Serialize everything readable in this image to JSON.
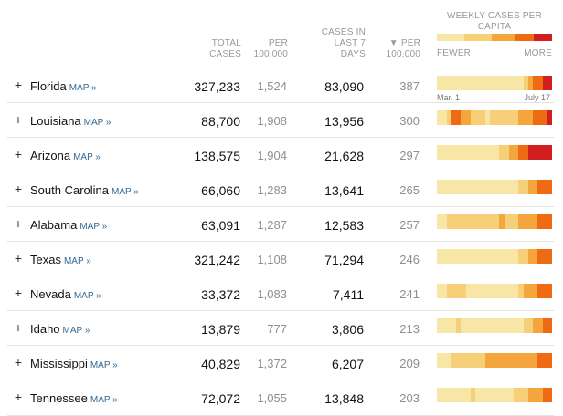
{
  "header": {
    "total_cases": "TOTAL CASES",
    "per_100k": "PER 100,000",
    "cases_last_7": "CASES IN LAST 7 DAYS",
    "per_100k_sorted": "▼ PER 100,000",
    "weekly_title": "WEEKLY CASES PER CAPITA",
    "fewer": "FEWER",
    "more": "MORE",
    "legend_colors": [
      "#f7e6a6",
      "#f6cf78",
      "#f4a53c",
      "#ee6a13",
      "#d11f1f"
    ]
  },
  "first_row_labels": {
    "start": "Mar. 1",
    "end": "July 17"
  },
  "link_label": "MAP »",
  "rows": [
    {
      "state": "Florida",
      "total": "327,233",
      "per100k": "1,524",
      "last7": "83,090",
      "last7_per100k": "387",
      "weekly": [
        0,
        0,
        0,
        0,
        0,
        0,
        0,
        0,
        0,
        0,
        0,
        0,
        0,
        0,
        0,
        0,
        0,
        0,
        1,
        2,
        3,
        3,
        4,
        4
      ]
    },
    {
      "state": "Louisiana",
      "total": "88,700",
      "per100k": "1,908",
      "last7": "13,956",
      "last7_per100k": "300",
      "weekly": [
        0,
        0,
        1,
        3,
        3,
        2,
        2,
        1,
        1,
        1,
        0,
        1,
        1,
        1,
        1,
        1,
        1,
        2,
        2,
        2,
        3,
        3,
        3,
        4
      ]
    },
    {
      "state": "Arizona",
      "total": "138,575",
      "per100k": "1,904",
      "last7": "21,628",
      "last7_per100k": "297",
      "weekly": [
        0,
        0,
        0,
        0,
        0,
        0,
        0,
        0,
        0,
        0,
        0,
        0,
        0,
        1,
        1,
        2,
        2,
        3,
        3,
        4,
        4,
        4,
        4,
        4
      ]
    },
    {
      "state": "South Carolina",
      "total": "66,060",
      "per100k": "1,283",
      "last7": "13,641",
      "last7_per100k": "265",
      "weekly": [
        0,
        0,
        0,
        0,
        0,
        0,
        0,
        0,
        0,
        0,
        0,
        0,
        0,
        0,
        0,
        0,
        0,
        1,
        1,
        2,
        2,
        3,
        3,
        3
      ]
    },
    {
      "state": "Alabama",
      "total": "63,091",
      "per100k": "1,287",
      "last7": "12,583",
      "last7_per100k": "257",
      "weekly": [
        0,
        0,
        1,
        1,
        1,
        1,
        1,
        1,
        1,
        1,
        1,
        1,
        1,
        2,
        1,
        1,
        1,
        2,
        2,
        2,
        2,
        3,
        3,
        3
      ]
    },
    {
      "state": "Texas",
      "total": "321,242",
      "per100k": "1,108",
      "last7": "71,294",
      "last7_per100k": "246",
      "weekly": [
        0,
        0,
        0,
        0,
        0,
        0,
        0,
        0,
        0,
        0,
        0,
        0,
        0,
        0,
        0,
        0,
        0,
        1,
        1,
        2,
        2,
        3,
        3,
        3
      ]
    },
    {
      "state": "Nevada",
      "total": "33,372",
      "per100k": "1,083",
      "last7": "7,411",
      "last7_per100k": "241",
      "weekly": [
        0,
        0,
        1,
        1,
        1,
        1,
        0,
        0,
        0,
        0,
        0,
        0,
        0,
        0,
        0,
        0,
        0,
        1,
        2,
        2,
        2,
        3,
        3,
        3
      ]
    },
    {
      "state": "Idaho",
      "total": "13,879",
      "per100k": "777",
      "last7": "3,806",
      "last7_per100k": "213",
      "weekly": [
        0,
        0,
        0,
        0,
        1,
        0,
        0,
        0,
        0,
        0,
        0,
        0,
        0,
        0,
        0,
        0,
        0,
        0,
        1,
        1,
        2,
        2,
        3,
        3
      ]
    },
    {
      "state": "Mississippi",
      "total": "40,829",
      "per100k": "1,372",
      "last7": "6,207",
      "last7_per100k": "209",
      "weekly": [
        0,
        0,
        0,
        1,
        1,
        1,
        1,
        1,
        1,
        1,
        2,
        2,
        2,
        2,
        2,
        2,
        2,
        2,
        2,
        2,
        2,
        3,
        3,
        3
      ]
    },
    {
      "state": "Tennessee",
      "total": "72,072",
      "per100k": "1,055",
      "last7": "13,848",
      "last7_per100k": "203",
      "weekly": [
        0,
        0,
        0,
        0,
        0,
        0,
        0,
        1,
        0,
        0,
        0,
        0,
        0,
        0,
        0,
        0,
        1,
        1,
        1,
        2,
        2,
        2,
        3,
        3
      ]
    }
  ]
}
